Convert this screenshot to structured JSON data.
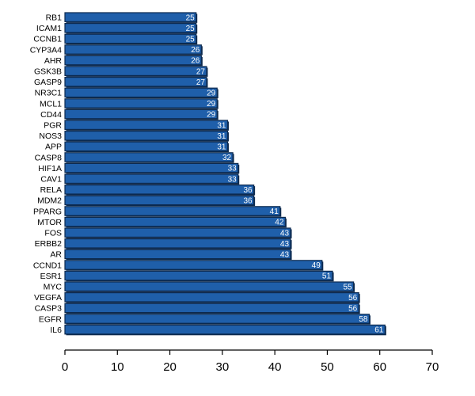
{
  "colors": {
    "bar": "#1f5faa",
    "bar_shadow": "#0d2a4f",
    "axis": "#000000"
  },
  "chart_data": {
    "type": "bar",
    "orientation": "horizontal",
    "categories": [
      "RB1",
      "ICAM1",
      "CCNB1",
      "CYP3A4",
      "AHR",
      "GSK3B",
      "GASP9",
      "NR3C1",
      "MCL1",
      "CD44",
      "PGR",
      "NOS3",
      "APP",
      "CASP8",
      "HIF1A",
      "CAV1",
      "RELA",
      "MDM2",
      "PPARG",
      "MTOR",
      "FOS",
      "ERBB2",
      "AR",
      "CCND1",
      "ESR1",
      "MYC",
      "VEGFA",
      "CASP3",
      "EGFR",
      "IL6"
    ],
    "values": [
      25,
      25,
      25,
      26,
      26,
      27,
      27,
      29,
      29,
      29,
      31,
      31,
      31,
      32,
      33,
      33,
      36,
      36,
      41,
      42,
      43,
      43,
      43,
      49,
      51,
      55,
      56,
      56,
      58,
      61
    ],
    "data_labels": [
      "25",
      "25",
      "25",
      "26",
      "26",
      "27",
      "27",
      "29",
      "29",
      "29",
      "31",
      "31",
      "31",
      "32",
      "33",
      "33",
      "36",
      "36",
      "41",
      "42",
      "43",
      "43",
      "43",
      "49",
      "51",
      "55",
      "56",
      "56",
      "58",
      "61"
    ],
    "xlim": [
      0,
      70
    ],
    "xticks": [
      "0",
      "10",
      "20",
      "30",
      "40",
      "50",
      "60",
      "70"
    ],
    "xtick_values": [
      0,
      10,
      20,
      30,
      40,
      50,
      60,
      70
    ],
    "title": "",
    "xlabel": "",
    "ylabel": "",
    "grid": false,
    "legend": "none"
  }
}
